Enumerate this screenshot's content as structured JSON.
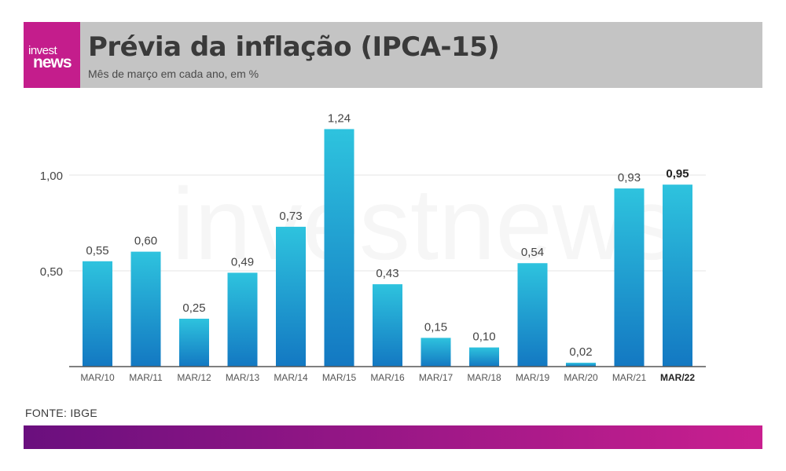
{
  "header": {
    "logo_top": "invest",
    "logo_bottom": "news",
    "title": "Prévia da inflação (IPCA-15)",
    "subtitle": "Mês de março em cada ano, em %"
  },
  "watermark": "investnews",
  "source": "FONTE: IBGE",
  "colors": {
    "logo_bg": "#c41d8c",
    "header_bg": "#c4c4c4",
    "bar_top": "#2ec3de",
    "bar_bottom": "#1378c2",
    "footer_start": "#6a0f7e",
    "footer_end": "#c91f8f"
  },
  "chart_data": {
    "type": "bar",
    "categories": [
      "MAR/10",
      "MAR/11",
      "MAR/12",
      "MAR/13",
      "MAR/14",
      "MAR/15",
      "MAR/16",
      "MAR/17",
      "MAR/18",
      "MAR/19",
      "MAR/20",
      "MAR/21",
      "MAR/22"
    ],
    "values": [
      0.55,
      0.6,
      0.25,
      0.49,
      0.73,
      1.24,
      0.43,
      0.15,
      0.1,
      0.54,
      0.02,
      0.93,
      0.95
    ],
    "value_labels": [
      "0,55",
      "0,60",
      "0,25",
      "0,49",
      "0,73",
      "1,24",
      "0,43",
      "0,15",
      "0,10",
      "0,54",
      "0,02",
      "0,93",
      "0,95"
    ],
    "highlight_index": 12,
    "y_ticks": [
      0.5,
      1.0
    ],
    "y_tick_labels": [
      "0,50",
      "1,00"
    ],
    "ylim": [
      0,
      1.3
    ],
    "grid": true,
    "title": "Prévia da inflação (IPCA-15)",
    "subtitle": "Mês de março em cada ano, em %"
  }
}
